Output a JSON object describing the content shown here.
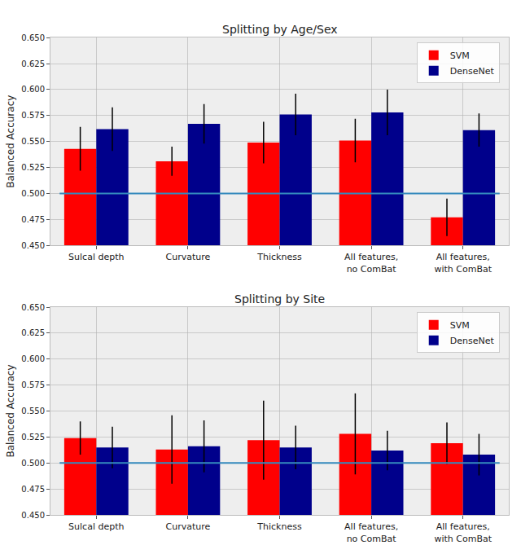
{
  "chart_data": [
    {
      "type": "bar",
      "title": "Splitting by Age/Sex",
      "y_label": "Balanced Accuracy",
      "categories": [
        "Sulcal depth",
        "Curvature",
        "Thickness",
        "All features, no ComBat",
        "All features, with ComBat"
      ],
      "series": [
        {
          "name": "SVM",
          "color": "#ff0000",
          "values": [
            0.543,
            0.531,
            0.549,
            0.551,
            0.477
          ],
          "errors": [
            0.021,
            0.014,
            0.02,
            0.021,
            0.018
          ]
        },
        {
          "name": "DenseNet",
          "color": "#00008b",
          "values": [
            0.562,
            0.567,
            0.576,
            0.578,
            0.561
          ],
          "errors": [
            0.021,
            0.019,
            0.02,
            0.022,
            0.016
          ]
        }
      ],
      "reference_line": 0.5,
      "ylim": [
        0.45,
        0.65
      ],
      "yticks": [
        {
          "value": 0.45,
          "label": "0.450"
        },
        0.475,
        {
          "value": 0.5,
          "label": "0.500"
        },
        0.525,
        {
          "value": 0.55,
          "label": "0.550"
        },
        0.575,
        {
          "value": 0.6,
          "label": "0.600"
        },
        0.625,
        {
          "value": 0.65,
          "label": "0.650"
        }
      ],
      "grid": true,
      "legend": "upper right"
    },
    {
      "type": "bar",
      "title": "Splitting by Site",
      "y_label": "Balanced Accuracy",
      "categories": [
        "Sulcal depth",
        "Curvature",
        "Thickness",
        "All features, no ComBat",
        "All features, with ComBat"
      ],
      "series": [
        {
          "name": "SVM",
          "color": "#ff0000",
          "values": [
            0.524,
            0.513,
            0.522,
            0.528,
            0.519
          ],
          "errors": [
            0.016,
            0.033,
            0.038,
            0.039,
            0.02
          ]
        },
        {
          "name": "DenseNet",
          "color": "#00008b",
          "values": [
            0.515,
            0.516,
            0.515,
            0.512,
            0.508
          ],
          "errors": [
            0.02,
            0.025,
            0.021,
            0.019,
            0.02
          ]
        }
      ],
      "reference_line": 0.5,
      "ylim": [
        0.45,
        0.65
      ],
      "yticks": [
        {
          "value": 0.45,
          "label": "0.450"
        },
        0.475,
        {
          "value": 0.5,
          "label": "0.500"
        },
        0.525,
        {
          "value": 0.55,
          "label": "0.550"
        },
        0.575,
        {
          "value": 0.6,
          "label": "0.600"
        },
        0.625,
        {
          "value": 0.65,
          "label": "0.650"
        }
      ],
      "grid": true,
      "legend": "upper right"
    }
  ]
}
